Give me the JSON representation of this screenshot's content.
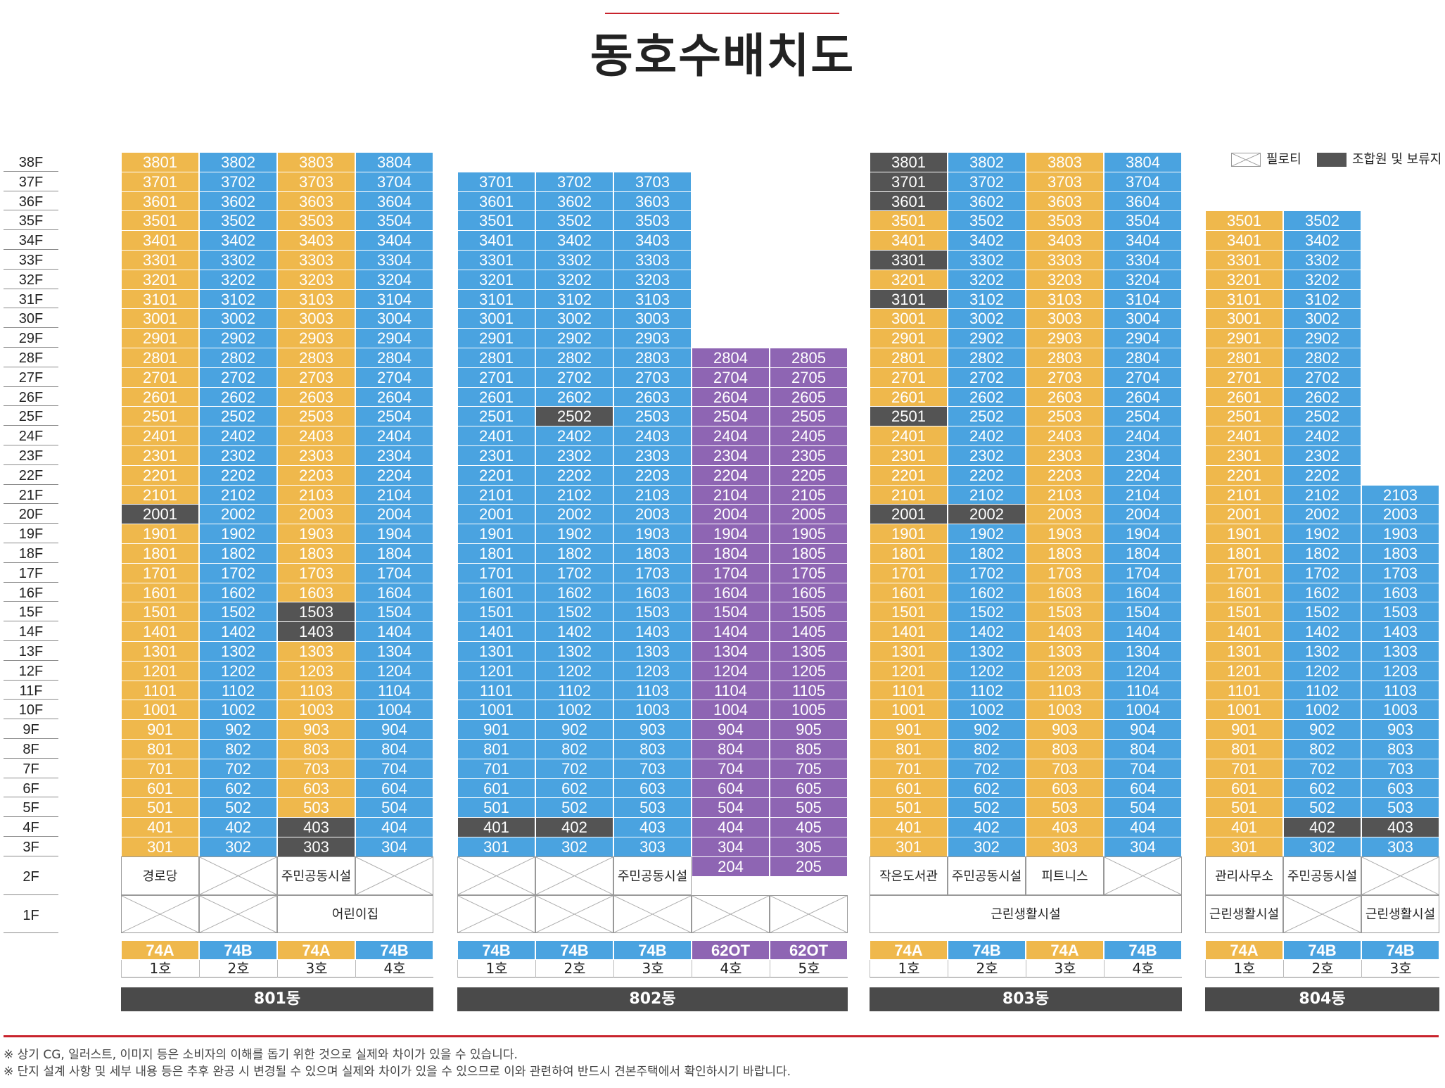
{
  "title": "동호수배치도",
  "colors": {
    "yellow": "#efb84c",
    "blue": "#4aa3e0",
    "purple": "#8e65b3",
    "dark": "#545454",
    "dongbar": "#4a4a4a",
    "accent": "#c8232c"
  },
  "legend": {
    "piloti": "필로티",
    "reserved": "조합원 및 보류지"
  },
  "floors": [
    "38F",
    "37F",
    "36F",
    "35F",
    "34F",
    "33F",
    "32F",
    "31F",
    "30F",
    "29F",
    "28F",
    "27F",
    "26F",
    "25F",
    "24F",
    "23F",
    "22F",
    "21F",
    "20F",
    "19F",
    "18F",
    "17F",
    "16F",
    "15F",
    "14F",
    "13F",
    "12F",
    "11F",
    "10F",
    "9F",
    "8F",
    "7F",
    "6F",
    "5F",
    "4F",
    "3F",
    "2F",
    "1F"
  ],
  "buildings": [
    {
      "name": "801동",
      "columns": [
        {
          "line": 1,
          "type": "74A",
          "unit_label": "1호",
          "color": "yellow",
          "top_floor": 38,
          "bottom_floor": 3,
          "reserved": [
            20
          ]
        },
        {
          "line": 2,
          "type": "74B",
          "unit_label": "2호",
          "color": "blue",
          "top_floor": 38,
          "bottom_floor": 3,
          "reserved": []
        },
        {
          "line": 3,
          "type": "74A",
          "unit_label": "3호",
          "color": "yellow",
          "top_floor": 38,
          "bottom_floor": 3,
          "reserved": [
            15,
            14,
            4,
            3
          ]
        },
        {
          "line": 4,
          "type": "74B",
          "unit_label": "4호",
          "color": "blue",
          "top_floor": 38,
          "bottom_floor": 3,
          "reserved": []
        }
      ],
      "floor2": [
        {
          "label": "경로당",
          "span": 1
        },
        {
          "label": "",
          "span": 1
        },
        {
          "label": "주민공동시설",
          "span": 1
        },
        {
          "label": "",
          "span": 1
        }
      ],
      "floor1": [
        {
          "label": "",
          "span": 1
        },
        {
          "label": "",
          "span": 1
        },
        {
          "label": "어린이집",
          "span": 2
        }
      ]
    },
    {
      "name": "802동",
      "columns": [
        {
          "line": 1,
          "type": "74B",
          "unit_label": "1호",
          "color": "blue",
          "top_floor": 37,
          "bottom_floor": 3,
          "reserved": [
            4
          ]
        },
        {
          "line": 2,
          "type": "74B",
          "unit_label": "2호",
          "color": "blue",
          "top_floor": 37,
          "bottom_floor": 3,
          "reserved": [
            25,
            4
          ]
        },
        {
          "line": 3,
          "type": "74B",
          "unit_label": "3호",
          "color": "blue",
          "top_floor": 37,
          "bottom_floor": 3,
          "reserved": []
        },
        {
          "line": 4,
          "type": "62OT",
          "unit_label": "4호",
          "color": "purple",
          "top_floor": 28,
          "bottom_floor": 2,
          "reserved": []
        },
        {
          "line": 5,
          "type": "62OT",
          "unit_label": "5호",
          "color": "purple",
          "top_floor": 28,
          "bottom_floor": 2,
          "reserved": []
        }
      ],
      "purple_labels": {
        "col4": [
          "2804",
          "2704",
          "2604",
          "2504",
          "2404",
          "2304",
          "2204",
          "2104",
          "2004",
          "1904",
          "1804",
          "1704",
          "1604",
          "1504",
          "1404",
          "1304",
          "1204",
          "1104",
          "1004",
          "904",
          "804",
          "704",
          "604",
          "504",
          "404",
          "304",
          "204"
        ],
        "col5": [
          "2805",
          "2705",
          "2605",
          "2505",
          "2405",
          "2305",
          "2205",
          "2105",
          "2005",
          "1905",
          "1805",
          "1705",
          "1605",
          "1505",
          "1405",
          "1305",
          "1205",
          "1105",
          "1005",
          "905",
          "805",
          "705",
          "605",
          "505",
          "405",
          "305",
          "205"
        ]
      },
      "floor2": [
        {
          "label": "",
          "span": 1
        },
        {
          "label": "",
          "span": 1
        },
        {
          "label": "주민공동시설",
          "span": 1
        }
      ],
      "floor1": [
        {
          "label": "",
          "span": 1
        },
        {
          "label": "",
          "span": 1
        },
        {
          "label": "",
          "span": 1
        },
        {
          "label": "",
          "span": 1
        },
        {
          "label": "",
          "span": 1
        }
      ]
    },
    {
      "name": "803동",
      "columns": [
        {
          "line": 1,
          "type": "74A",
          "unit_label": "1호",
          "color": "yellow",
          "top_floor": 38,
          "bottom_floor": 3,
          "reserved": [
            38,
            37,
            36,
            33,
            31,
            25,
            20
          ]
        },
        {
          "line": 2,
          "type": "74B",
          "unit_label": "2호",
          "color": "blue",
          "top_floor": 38,
          "bottom_floor": 3,
          "reserved": [
            20
          ]
        },
        {
          "line": 3,
          "type": "74A",
          "unit_label": "3호",
          "color": "yellow",
          "top_floor": 38,
          "bottom_floor": 3,
          "reserved": []
        },
        {
          "line": 4,
          "type": "74B",
          "unit_label": "4호",
          "color": "blue",
          "top_floor": 38,
          "bottom_floor": 3,
          "reserved": []
        }
      ],
      "floor2": [
        {
          "label": "작은도서관",
          "span": 1
        },
        {
          "label": "주민공동시설",
          "span": 1
        },
        {
          "label": "피트니스",
          "span": 1
        },
        {
          "label": "",
          "span": 1
        }
      ],
      "floor1": [
        {
          "label": "근린생활시설",
          "span": 4
        }
      ]
    },
    {
      "name": "804동",
      "columns": [
        {
          "line": 1,
          "type": "74A",
          "unit_label": "1호",
          "color": "yellow",
          "top_floor": 35,
          "bottom_floor": 3,
          "reserved": []
        },
        {
          "line": 2,
          "type": "74B",
          "unit_label": "2호",
          "color": "blue",
          "top_floor": 35,
          "bottom_floor": 3,
          "reserved": [
            4
          ]
        },
        {
          "line": 3,
          "type": "74B",
          "unit_label": "3호",
          "color": "blue",
          "top_floor": 21,
          "bottom_floor": 3,
          "reserved": [
            4
          ]
        }
      ],
      "floor2": [
        {
          "label": "관리사무소",
          "span": 1
        },
        {
          "label": "주민공동시설",
          "span": 1
        },
        {
          "label": "",
          "span": 1
        }
      ],
      "floor1": [
        {
          "label": "근린생활시설",
          "span": 1
        },
        {
          "label": "",
          "span": 1
        },
        {
          "label": "근린생활시설",
          "span": 1
        }
      ]
    }
  ],
  "notes": [
    "※ 상기 CG, 일러스트, 이미지 등은 소비자의 이해를 돕기 위한 것으로 실제와 차이가 있을 수 있습니다.",
    "※ 단지 설계 사항 및 세부 내용 등은 추후 완공 시 변경될 수 있으며 실제와 차이가 있을 수 있으므로 이와 관련하여 반드시 견본주택에서 확인하시기 바랍니다."
  ]
}
